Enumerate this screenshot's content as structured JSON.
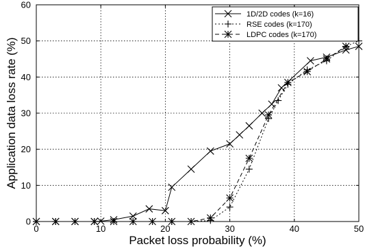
{
  "chart_data": {
    "type": "line",
    "title": "",
    "xlabel": "Packet loss probability (%)",
    "ylabel": "Application data loss rate (%)",
    "xlim": [
      0,
      50
    ],
    "ylim": [
      0,
      60
    ],
    "xticks": [
      0,
      10,
      20,
      30,
      40,
      50
    ],
    "yticks": [
      0,
      10,
      20,
      30,
      40,
      50,
      60
    ],
    "grid": true,
    "grid_style": "dotted",
    "legend_position": "top-right",
    "series": [
      {
        "name": "1D/2D codes (k=16)",
        "line_style": "solid",
        "marker": "x",
        "x": [
          0,
          3,
          6,
          9,
          10,
          12,
          15,
          17.5,
          20,
          21,
          24,
          27,
          30,
          31.5,
          33,
          35,
          36.5,
          38,
          42.5,
          45,
          48,
          50
        ],
        "y": [
          0,
          0,
          0,
          0,
          0.1,
          0.5,
          1.5,
          3.5,
          3.0,
          9.5,
          14.5,
          19.5,
          21.5,
          24.0,
          26.5,
          30.0,
          32.5,
          37.0,
          44.5,
          45.5,
          47.5,
          48.5
        ]
      },
      {
        "name": "RSE codes (k=170)",
        "line_style": "dotted",
        "marker": "+",
        "x": [
          0,
          3,
          6,
          9,
          12,
          15,
          18,
          21,
          24,
          27,
          30,
          33,
          36,
          37.5,
          39,
          42,
          45,
          48,
          50
        ],
        "y": [
          0,
          0,
          0,
          0,
          0,
          0,
          0,
          0,
          0,
          0.3,
          4.0,
          14.5,
          28.5,
          33.5,
          38.0,
          42.0,
          44.5,
          48.5,
          50.0
        ]
      },
      {
        "name": "LDPC codes (k=170)",
        "line_style": "dashed",
        "marker": "*",
        "x": [
          0,
          3,
          6,
          9,
          12,
          15,
          18,
          21,
          24,
          27,
          30,
          33,
          36,
          39,
          42,
          45,
          48
        ],
        "y": [
          0,
          0,
          0,
          0,
          0,
          0,
          0,
          0,
          0,
          1.0,
          6.5,
          17.5,
          29.5,
          38.5,
          41.5,
          45.0,
          48.5
        ]
      }
    ]
  }
}
